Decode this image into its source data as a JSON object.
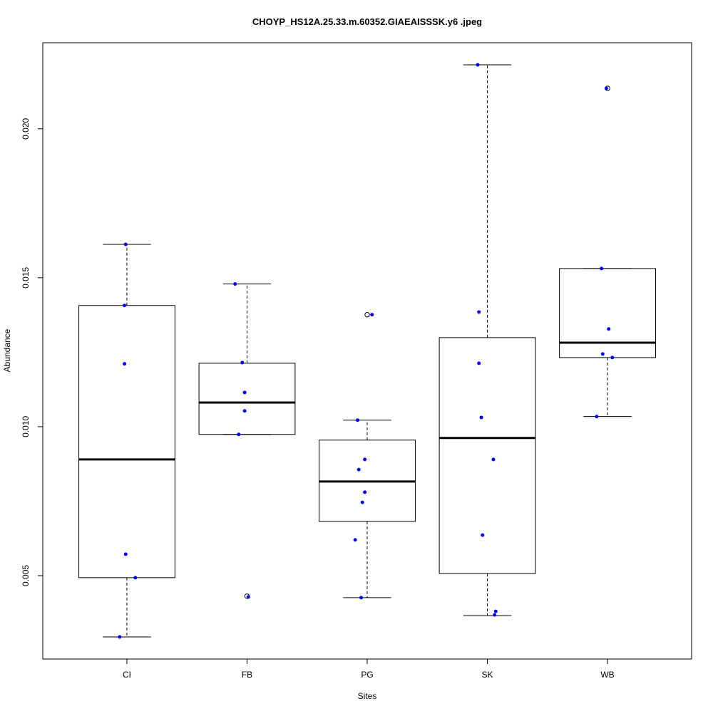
{
  "chart_data": {
    "type": "boxplot",
    "title": "CHOYP_HS12A.25.33.m.60352.GIAEAISSSK.y6 .jpeg",
    "xlabel": "Sites",
    "ylabel": "Abundance",
    "ylim": [
      0.0022,
      0.02289
    ],
    "yticks": [
      0.005,
      0.01,
      0.015,
      0.02
    ],
    "ytick_labels": [
      "0.005",
      "0.010",
      "0.015",
      "0.020"
    ],
    "grid": false,
    "point_color": "#0000ff",
    "categories": [
      "CI",
      "FB",
      "PG",
      "SK",
      "WB"
    ],
    "boxes": [
      {
        "name": "CI",
        "whisker_low": 0.00294,
        "q1": 0.00493,
        "median": 0.0089,
        "q3": 0.01407,
        "whisker_high": 0.01612,
        "outliers": []
      },
      {
        "name": "FB",
        "whisker_low": 0.00974,
        "q1": 0.00974,
        "median": 0.01081,
        "q3": 0.01213,
        "whisker_high": 0.01479,
        "outliers": [
          0.00431
        ]
      },
      {
        "name": "PG",
        "whisker_low": 0.00426,
        "q1": 0.00682,
        "median": 0.00816,
        "q3": 0.00955,
        "whisker_high": 0.01022,
        "outliers": [
          0.01376
        ]
      },
      {
        "name": "SK",
        "whisker_low": 0.00366,
        "q1": 0.00507,
        "median": 0.00962,
        "q3": 0.01299,
        "whisker_high": 0.02215,
        "outliers": []
      },
      {
        "name": "WB",
        "whisker_low": 0.01034,
        "q1": 0.01232,
        "median": 0.01282,
        "q3": 0.01531,
        "whisker_high": 0.01531,
        "outliers": [
          0.02136
        ]
      }
    ],
    "points": [
      {
        "x": 0.99,
        "y": 0.01612
      },
      {
        "x": 0.98,
        "y": 0.01407
      },
      {
        "x": 0.98,
        "y": 0.01211
      },
      {
        "x": 0.99,
        "y": 0.00572
      },
      {
        "x": 1.07,
        "y": 0.00493
      },
      {
        "x": 0.94,
        "y": 0.00294
      },
      {
        "x": 1.9,
        "y": 0.01479
      },
      {
        "x": 1.96,
        "y": 0.01215
      },
      {
        "x": 1.98,
        "y": 0.01115
      },
      {
        "x": 1.98,
        "y": 0.01053
      },
      {
        "x": 1.93,
        "y": 0.00974
      },
      {
        "x": 2.01,
        "y": 0.00428
      },
      {
        "x": 3.04,
        "y": 0.01376
      },
      {
        "x": 2.92,
        "y": 0.01022
      },
      {
        "x": 2.98,
        "y": 0.0089
      },
      {
        "x": 2.93,
        "y": 0.00856
      },
      {
        "x": 2.98,
        "y": 0.0078
      },
      {
        "x": 2.96,
        "y": 0.00746
      },
      {
        "x": 2.9,
        "y": 0.0062
      },
      {
        "x": 2.95,
        "y": 0.00426
      },
      {
        "x": 3.92,
        "y": 0.02215
      },
      {
        "x": 3.93,
        "y": 0.01385
      },
      {
        "x": 3.93,
        "y": 0.01213
      },
      {
        "x": 3.95,
        "y": 0.01031
      },
      {
        "x": 4.05,
        "y": 0.0089
      },
      {
        "x": 3.96,
        "y": 0.00636
      },
      {
        "x": 4.07,
        "y": 0.0038
      },
      {
        "x": 4.06,
        "y": 0.00368
      },
      {
        "x": 4.99,
        "y": 0.02136
      },
      {
        "x": 4.95,
        "y": 0.01531
      },
      {
        "x": 5.01,
        "y": 0.01328
      },
      {
        "x": 4.96,
        "y": 0.01244
      },
      {
        "x": 5.04,
        "y": 0.01232
      },
      {
        "x": 4.91,
        "y": 0.01034
      }
    ]
  }
}
